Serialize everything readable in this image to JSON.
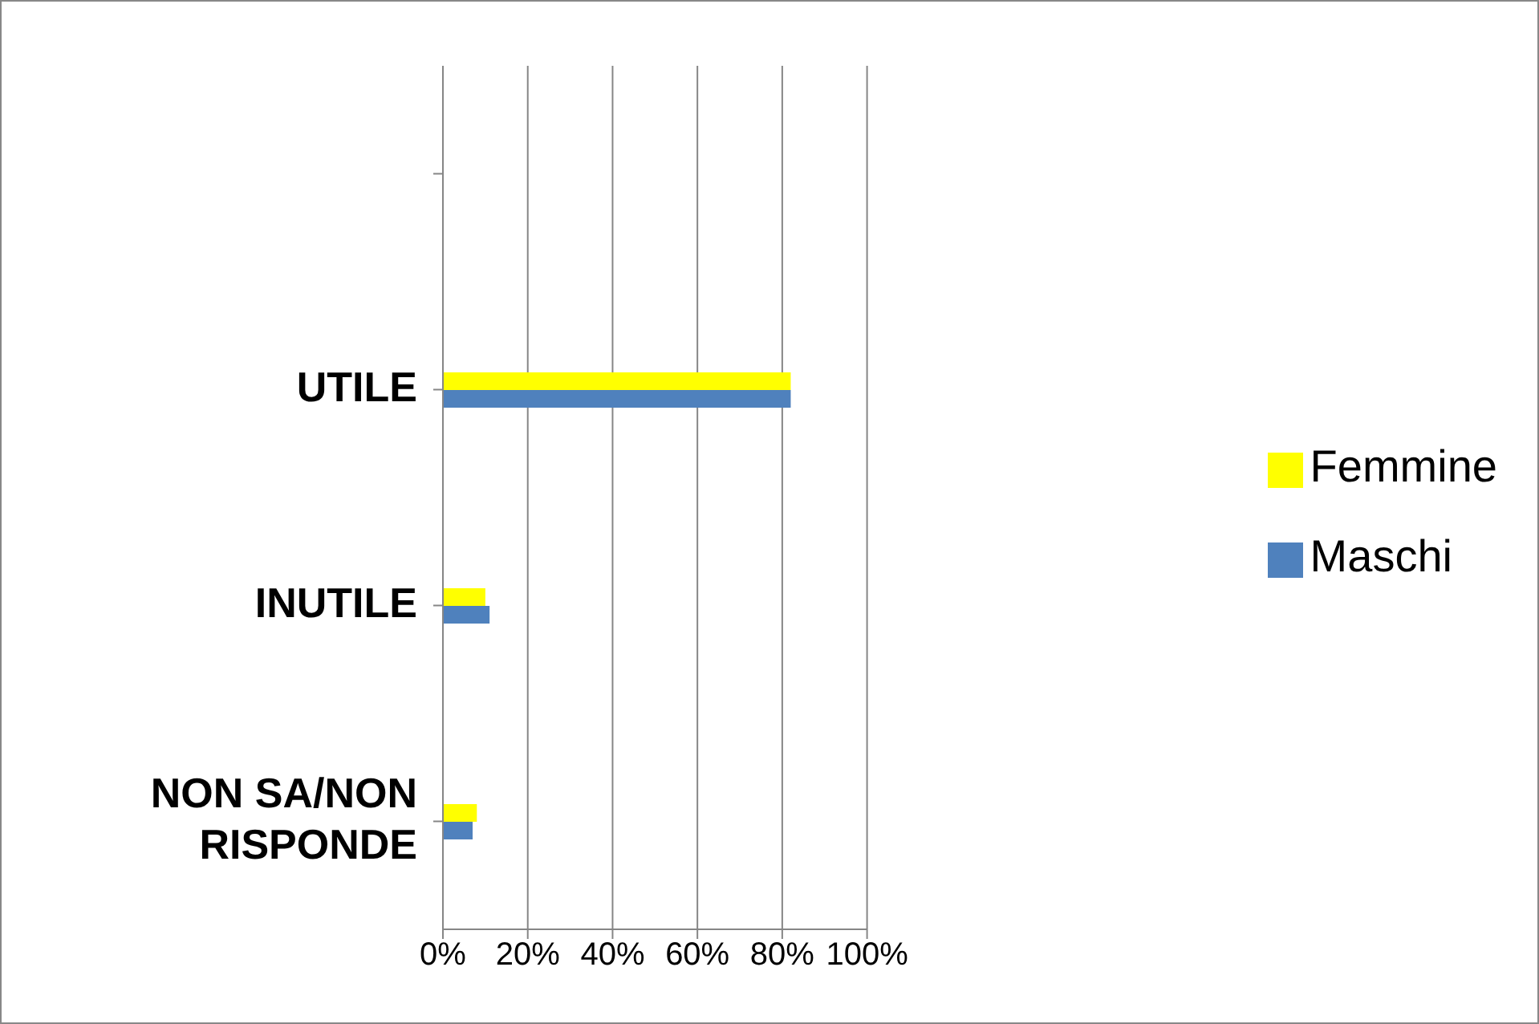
{
  "chart_data": {
    "type": "bar",
    "orientation": "horizontal",
    "categories": [
      null,
      "UTILE",
      "INUTILE",
      "NON SA/NON RISPONDE"
    ],
    "series": [
      {
        "name": "Femmine",
        "color": "#ffff00",
        "values": [
          null,
          82,
          10,
          8
        ]
      },
      {
        "name": "Maschi",
        "color": "#4f81bd",
        "values": [
          null,
          82,
          11,
          7
        ]
      }
    ],
    "xlim": [
      0,
      100
    ],
    "xticks": [
      {
        "value": 0,
        "label": "0%"
      },
      {
        "value": 20,
        "label": "20%"
      },
      {
        "value": 40,
        "label": "40%"
      },
      {
        "value": 60,
        "label": "60%"
      },
      {
        "value": 80,
        "label": "80%"
      },
      {
        "value": 100,
        "label": "100%"
      }
    ],
    "grid": "x",
    "legend": "right"
  }
}
